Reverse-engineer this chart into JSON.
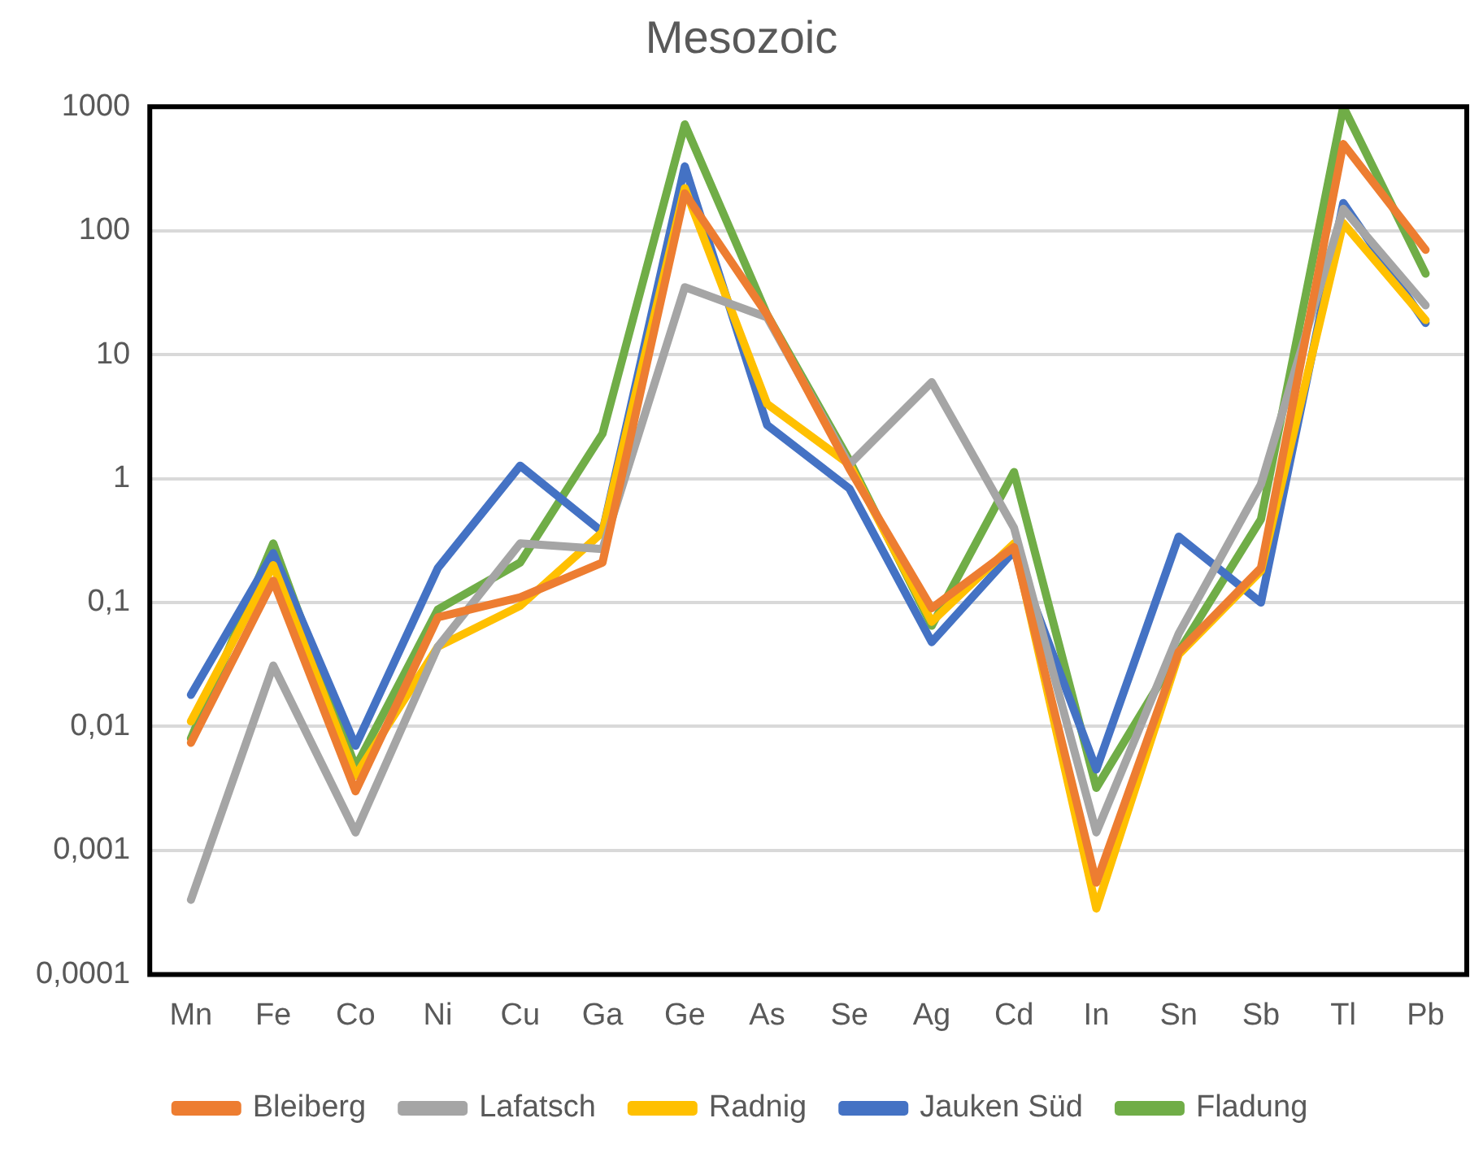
{
  "chart_data": {
    "type": "line",
    "title": "Mesozoic",
    "categories": [
      "Mn",
      "Fe",
      "Co",
      "Ni",
      "Cu",
      "Ga",
      "Ge",
      "As",
      "Se",
      "Ag",
      "Cd",
      "In",
      "Sn",
      "Sb",
      "Tl",
      "Pb"
    ],
    "series": [
      {
        "name": "Bleiberg",
        "color": "#ed7d31",
        "values": [
          0.0074,
          0.15,
          0.003,
          0.076,
          0.11,
          0.21,
          200,
          21,
          1.2,
          0.09,
          0.28,
          0.00055,
          0.04,
          0.19,
          500,
          70
        ]
      },
      {
        "name": "Lafatsch",
        "color": "#a5a5a5",
        "values": [
          0.0004,
          0.031,
          0.0014,
          0.044,
          0.3,
          0.27,
          35,
          20,
          1.3,
          6,
          0.4,
          0.0014,
          0.056,
          0.9,
          150,
          25
        ]
      },
      {
        "name": "Radnig",
        "color": "#ffc000",
        "values": [
          0.011,
          0.2,
          0.004,
          0.044,
          0.094,
          0.37,
          220,
          4,
          1.3,
          0.07,
          0.3,
          0.00034,
          0.038,
          0.18,
          115,
          19
        ]
      },
      {
        "name": "Jauken Süd",
        "color": "#4472c4",
        "values": [
          0.018,
          0.25,
          0.007,
          0.19,
          1.27,
          0.37,
          330,
          2.7,
          0.83,
          0.048,
          0.26,
          0.0045,
          0.34,
          0.1,
          167,
          18
        ]
      },
      {
        "name": "Fladung",
        "color": "#70ad47",
        "values": [
          0.008,
          0.3,
          0.0047,
          0.088,
          0.21,
          2.3,
          720,
          21,
          1.4,
          0.065,
          1.13,
          0.0032,
          0.04,
          0.47,
          1000,
          45
        ]
      }
    ],
    "log": "y",
    "ylim": [
      0.0001,
      1000
    ],
    "yticks": [
      {
        "value": 0.0001,
        "label": "0,0001"
      },
      {
        "value": 0.001,
        "label": "0,001"
      },
      {
        "value": 0.01,
        "label": "0,01"
      },
      {
        "value": 0.1,
        "label": "0,1"
      },
      1,
      10,
      100,
      1000
    ],
    "grid": "y",
    "legend": "bottom",
    "marker": "none",
    "line_style": "solid"
  }
}
